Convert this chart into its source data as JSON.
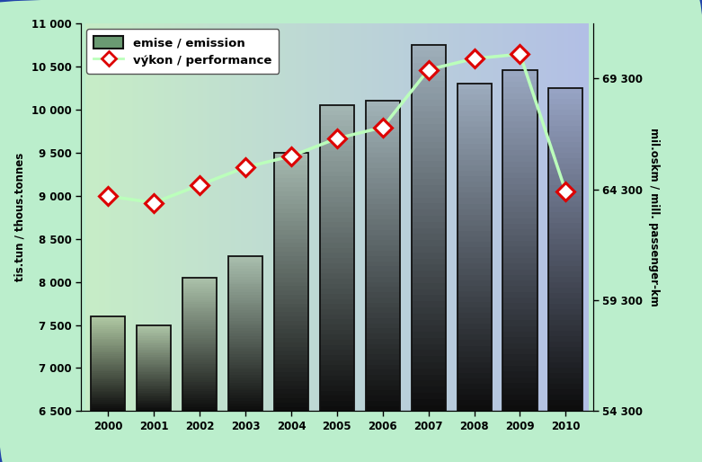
{
  "years": [
    2000,
    2001,
    2002,
    2003,
    2004,
    2005,
    2006,
    2007,
    2008,
    2009,
    2010
  ],
  "emissions": [
    7600,
    7500,
    8050,
    8300,
    9500,
    10050,
    10100,
    10750,
    10300,
    10450,
    10250
  ],
  "performance": [
    64000,
    63700,
    64500,
    65300,
    65800,
    66600,
    67100,
    69700,
    70200,
    70400,
    64200
  ],
  "bar_edge_color": "#111111",
  "line_color": "#bbffbb",
  "marker_facecolor": "#ffffff",
  "marker_edgecolor": "#dd0000",
  "background_outer": "#bbeecc",
  "ylabel_left": "tis.tun / thous.tonnes",
  "ylabel_right": "mil.oskm / mill. passenger-km",
  "ylim_left": [
    6500,
    11000
  ],
  "ylim_right": [
    54300,
    71800
  ],
  "yticks_left": [
    6500,
    7000,
    7500,
    8000,
    8500,
    9000,
    9500,
    10000,
    10500,
    11000
  ],
  "ytick_labels_left": [
    "6 500",
    "7 000",
    "7 500",
    "8 000",
    "8 500",
    "9 000",
    "9 500",
    "10 000",
    "10 500",
    "11 000"
  ],
  "yticks_right": [
    54300,
    59300,
    64300,
    69300
  ],
  "ytick_labels_right": [
    "54 300",
    "59 300",
    "64 300",
    "69 300"
  ],
  "legend_emission": "emise / emission",
  "legend_performance": "výkon / performance",
  "bar_colors_left": [
    "#5a8a60",
    "#6a9a70",
    "#7aaa80",
    "#8aba90",
    "#9ac8a0",
    "#aad4b0"
  ],
  "bar_gradient_top_left": "#c8e8c0",
  "bar_gradient_top_right": "#8899bb",
  "bar_gradient_bottom": "#111111"
}
